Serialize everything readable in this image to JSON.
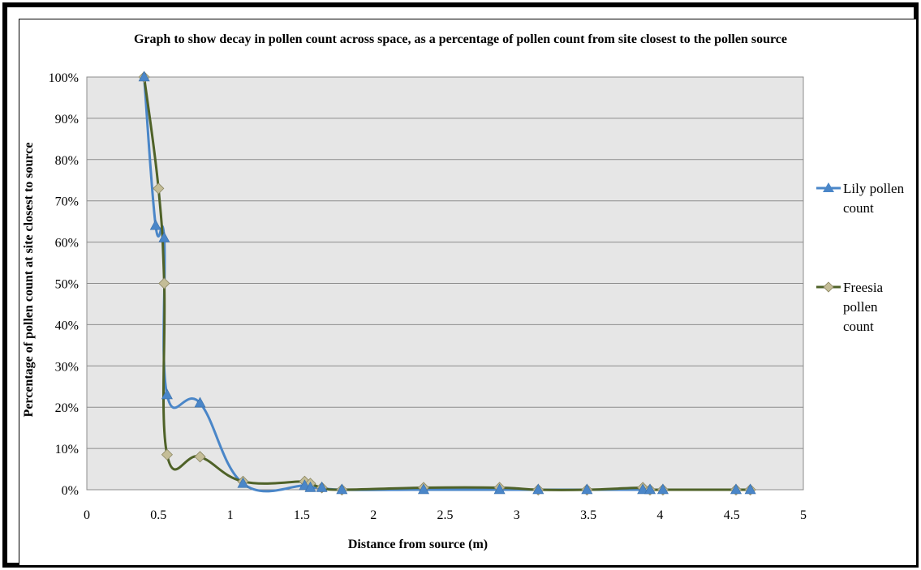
{
  "chart_data": {
    "type": "scatter",
    "title": "Graph to show decay in pollen count across space, as a percentage of pollen count from site closest to the pollen source",
    "xlabel": "Distance from source (m)",
    "ylabel": "Percentage of pollen count at site closest to source",
    "xlim": [
      0,
      5
    ],
    "ylim": [
      0,
      100
    ],
    "xticks": [
      "0",
      "0.5",
      "1",
      "1.5",
      "2",
      "2.5",
      "3",
      "3.5",
      "4",
      "4.5",
      "5"
    ],
    "yticks": [
      "0%",
      "10%",
      "20%",
      "30%",
      "40%",
      "50%",
      "60%",
      "70%",
      "80%",
      "90%",
      "100%"
    ],
    "grid": "horizontal",
    "plot_background": "#e6e6e6",
    "legend_position": "right",
    "series": [
      {
        "name": "Lily pollen count",
        "color": "#4a86c8",
        "marker": "triangle",
        "points": [
          [
            0.4,
            100
          ],
          [
            0.48,
            64
          ],
          [
            0.54,
            61
          ],
          [
            0.56,
            23
          ],
          [
            0.79,
            21
          ],
          [
            1.09,
            1.5
          ],
          [
            1.52,
            1
          ],
          [
            1.56,
            0.5
          ],
          [
            1.64,
            0.5
          ],
          [
            1.78,
            0
          ],
          [
            2.35,
            0
          ],
          [
            2.88,
            0
          ],
          [
            3.15,
            0
          ],
          [
            3.49,
            0
          ],
          [
            3.88,
            0
          ],
          [
            3.93,
            0
          ],
          [
            4.02,
            0
          ],
          [
            4.53,
            0
          ],
          [
            4.63,
            0
          ]
        ]
      },
      {
        "name": "Freesia pollen count",
        "color": "#4f6228",
        "marker": "diamond",
        "marker_fill": "#c4bd97",
        "points": [
          [
            0.4,
            100
          ],
          [
            0.5,
            73
          ],
          [
            0.54,
            50
          ],
          [
            0.56,
            8.5
          ],
          [
            0.79,
            8
          ],
          [
            1.09,
            2
          ],
          [
            1.52,
            2
          ],
          [
            1.56,
            1.5
          ],
          [
            1.64,
            0.5
          ],
          [
            1.78,
            0
          ],
          [
            2.35,
            0.5
          ],
          [
            2.88,
            0.5
          ],
          [
            3.15,
            0
          ],
          [
            3.49,
            0
          ],
          [
            3.88,
            0.5
          ],
          [
            3.93,
            0
          ],
          [
            4.02,
            0
          ],
          [
            4.53,
            0
          ],
          [
            4.63,
            0
          ]
        ]
      }
    ]
  },
  "legend": {
    "lily_lines": [
      "Lily pollen",
      "count"
    ],
    "freesia_lines": [
      "Freesia",
      "pollen",
      "count"
    ]
  }
}
